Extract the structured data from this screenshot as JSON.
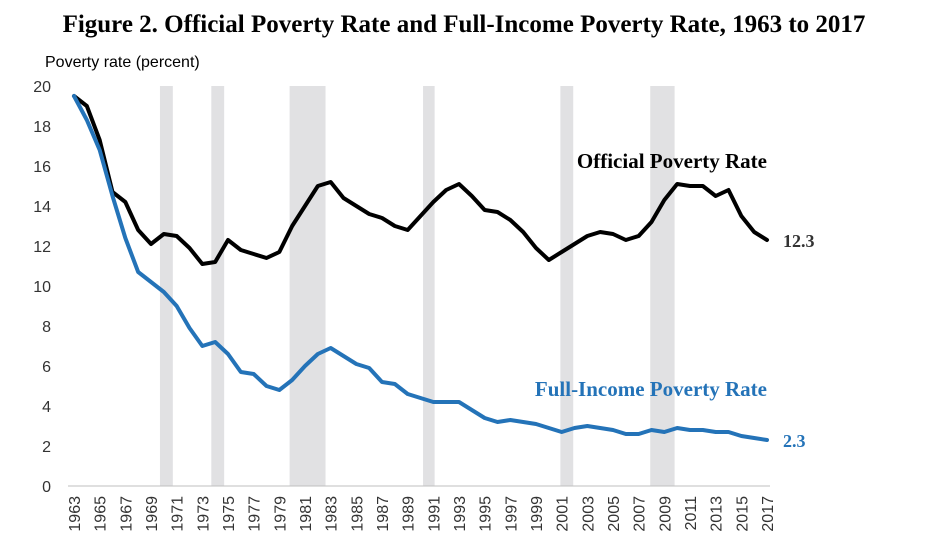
{
  "chart_data": {
    "type": "line",
    "title": "Figure 2. Official Poverty Rate and Full-Income Poverty Rate, 1963 to 2017",
    "ylabel": "Poverty rate (percent)",
    "xlabel": "",
    "xlim": [
      1963,
      2017
    ],
    "ylim": [
      0,
      20
    ],
    "yticks": [
      0,
      2,
      4,
      6,
      8,
      10,
      12,
      14,
      16,
      18,
      20
    ],
    "xticks": [
      1963,
      1965,
      1967,
      1969,
      1971,
      1973,
      1975,
      1977,
      1979,
      1981,
      1983,
      1985,
      1987,
      1989,
      1991,
      1993,
      1995,
      1997,
      1999,
      2001,
      2003,
      2005,
      2007,
      2009,
      2011,
      2013,
      2015,
      2017
    ],
    "grid": false,
    "recession_shading": [
      [
        1969.7,
        1970.7
      ],
      [
        1973.7,
        1974.7
      ],
      [
        1979.8,
        1982.6
      ],
      [
        1990.2,
        1991.1
      ],
      [
        2000.9,
        2001.9
      ],
      [
        2007.9,
        2009.8
      ]
    ],
    "x": [
      1963,
      1964,
      1965,
      1966,
      1967,
      1968,
      1969,
      1970,
      1971,
      1972,
      1973,
      1974,
      1975,
      1976,
      1977,
      1978,
      1979,
      1980,
      1981,
      1982,
      1983,
      1984,
      1985,
      1986,
      1987,
      1988,
      1989,
      1990,
      1991,
      1992,
      1993,
      1994,
      1995,
      1996,
      1997,
      1998,
      1999,
      2000,
      2001,
      2002,
      2003,
      2004,
      2005,
      2006,
      2007,
      2008,
      2009,
      2010,
      2011,
      2012,
      2013,
      2014,
      2015,
      2016,
      2017
    ],
    "series": [
      {
        "name": "Official Poverty Rate",
        "color": "#000000",
        "end_label": "12.3",
        "values": [
          19.5,
          19.0,
          17.3,
          14.7,
          14.2,
          12.8,
          12.1,
          12.6,
          12.5,
          11.9,
          11.1,
          11.2,
          12.3,
          11.8,
          11.6,
          11.4,
          11.7,
          13.0,
          14.0,
          15.0,
          15.2,
          14.4,
          14.0,
          13.6,
          13.4,
          13.0,
          12.8,
          13.5,
          14.2,
          14.8,
          15.1,
          14.5,
          13.8,
          13.7,
          13.3,
          12.7,
          11.9,
          11.3,
          11.7,
          12.1,
          12.5,
          12.7,
          12.6,
          12.3,
          12.5,
          13.2,
          14.3,
          15.1,
          15.0,
          15.0,
          14.5,
          14.8,
          13.5,
          12.7,
          12.3
        ]
      },
      {
        "name": "Full-Income Poverty Rate",
        "color": "#2473b8",
        "end_label": "2.3",
        "values": [
          19.5,
          18.3,
          16.8,
          14.5,
          12.4,
          10.7,
          10.2,
          9.7,
          9.0,
          7.9,
          7.0,
          7.2,
          6.6,
          5.7,
          5.6,
          5.0,
          4.8,
          5.3,
          6.0,
          6.6,
          6.9,
          6.5,
          6.1,
          5.9,
          5.2,
          5.1,
          4.6,
          4.4,
          4.2,
          4.2,
          4.2,
          3.8,
          3.4,
          3.2,
          3.3,
          3.2,
          3.1,
          2.9,
          2.7,
          2.9,
          3.0,
          2.9,
          2.8,
          2.6,
          2.6,
          2.8,
          2.7,
          2.9,
          2.8,
          2.8,
          2.7,
          2.7,
          2.5,
          2.4,
          2.3
        ]
      }
    ]
  }
}
